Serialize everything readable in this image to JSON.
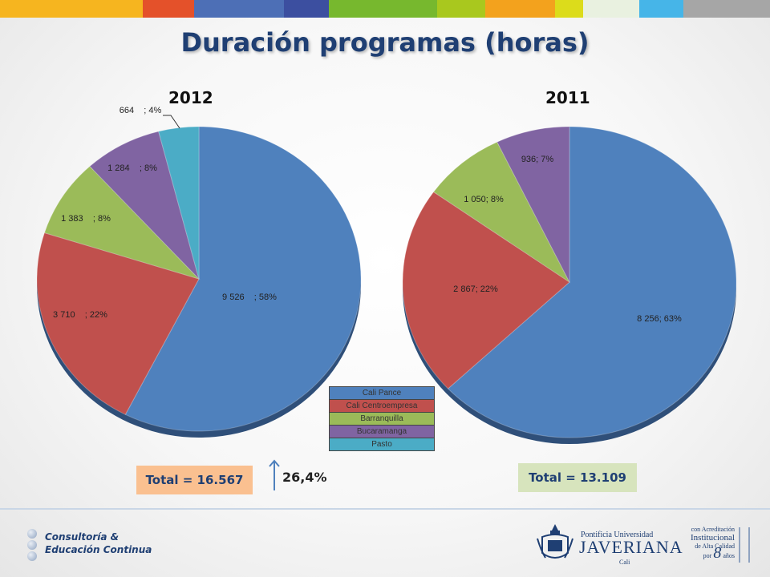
{
  "top_band_colors": [
    "#f6b51f",
    "#e4512a",
    "#4d6fb6",
    "#3c4fa0",
    "#77b82e",
    "#a9c81e",
    "#f3a21d",
    "#dcdc1b",
    "#e9f1e0",
    "#46b5e8",
    "#a6a6a6"
  ],
  "title": "Duración programas (horas)",
  "legend": [
    {
      "label": "Cali Pance",
      "color": "#4f81bd"
    },
    {
      "label": "Cali Centroempresa",
      "color": "#c0504d"
    },
    {
      "label": "Barranquilla",
      "color": "#9bbb59"
    },
    {
      "label": "Bucaramanga",
      "color": "#8064a2"
    },
    {
      "label": "Pasto",
      "color": "#4bacc6"
    }
  ],
  "chart_data": [
    {
      "type": "pie",
      "title": "2012",
      "categories": [
        "Cali Pance",
        "Cali Centroempresa",
        "Barranquilla",
        "Bucaramanga",
        "Pasto"
      ],
      "values": [
        9526,
        3710,
        1383,
        1284,
        664
      ],
      "percents": [
        58,
        22,
        8,
        8,
        4
      ],
      "data_labels": [
        "9 526    ; 58%",
        "3 710    ; 22%",
        "1 383    ; 8%",
        "1 284    ; 8%",
        "664    ; 4%"
      ],
      "colors": [
        "#4f81bd",
        "#c0504d",
        "#9bbb59",
        "#8064a2",
        "#4bacc6"
      ],
      "total_label": "Total  = 16.567"
    },
    {
      "type": "pie",
      "title": "2011",
      "categories": [
        "Cali Pance",
        "Cali Centroempresa",
        "Barranquilla",
        "Bucaramanga"
      ],
      "values": [
        8256,
        2867,
        1050,
        936
      ],
      "percents": [
        63,
        22,
        8,
        7
      ],
      "data_labels": [
        "8 256; 63%",
        "2 867; 22%",
        "1 050; 8%",
        "936; 7%"
      ],
      "colors": [
        "#4f81bd",
        "#c0504d",
        "#9bbb59",
        "#8064a2"
      ],
      "total_label": "Total  = 13.109"
    }
  ],
  "growth": {
    "label": "26,4%",
    "arrow_color": "#4f81bd"
  },
  "total_box_colors": {
    "left": "#fac090",
    "right": "#d7e4bd"
  },
  "footer": {
    "left_line1": "Consultoría &",
    "left_line2": "Educación Continua",
    "university_small": "Pontificia Universidad",
    "university_big": "JAVERIANA",
    "university_city": "Cali",
    "accreditation_line1": "con Acreditación",
    "accreditation_line2": "Institucional",
    "accreditation_line3": "de Alta Calidad",
    "accreditation_por": "por",
    "accreditation_number": "8",
    "accreditation_years": "años"
  }
}
